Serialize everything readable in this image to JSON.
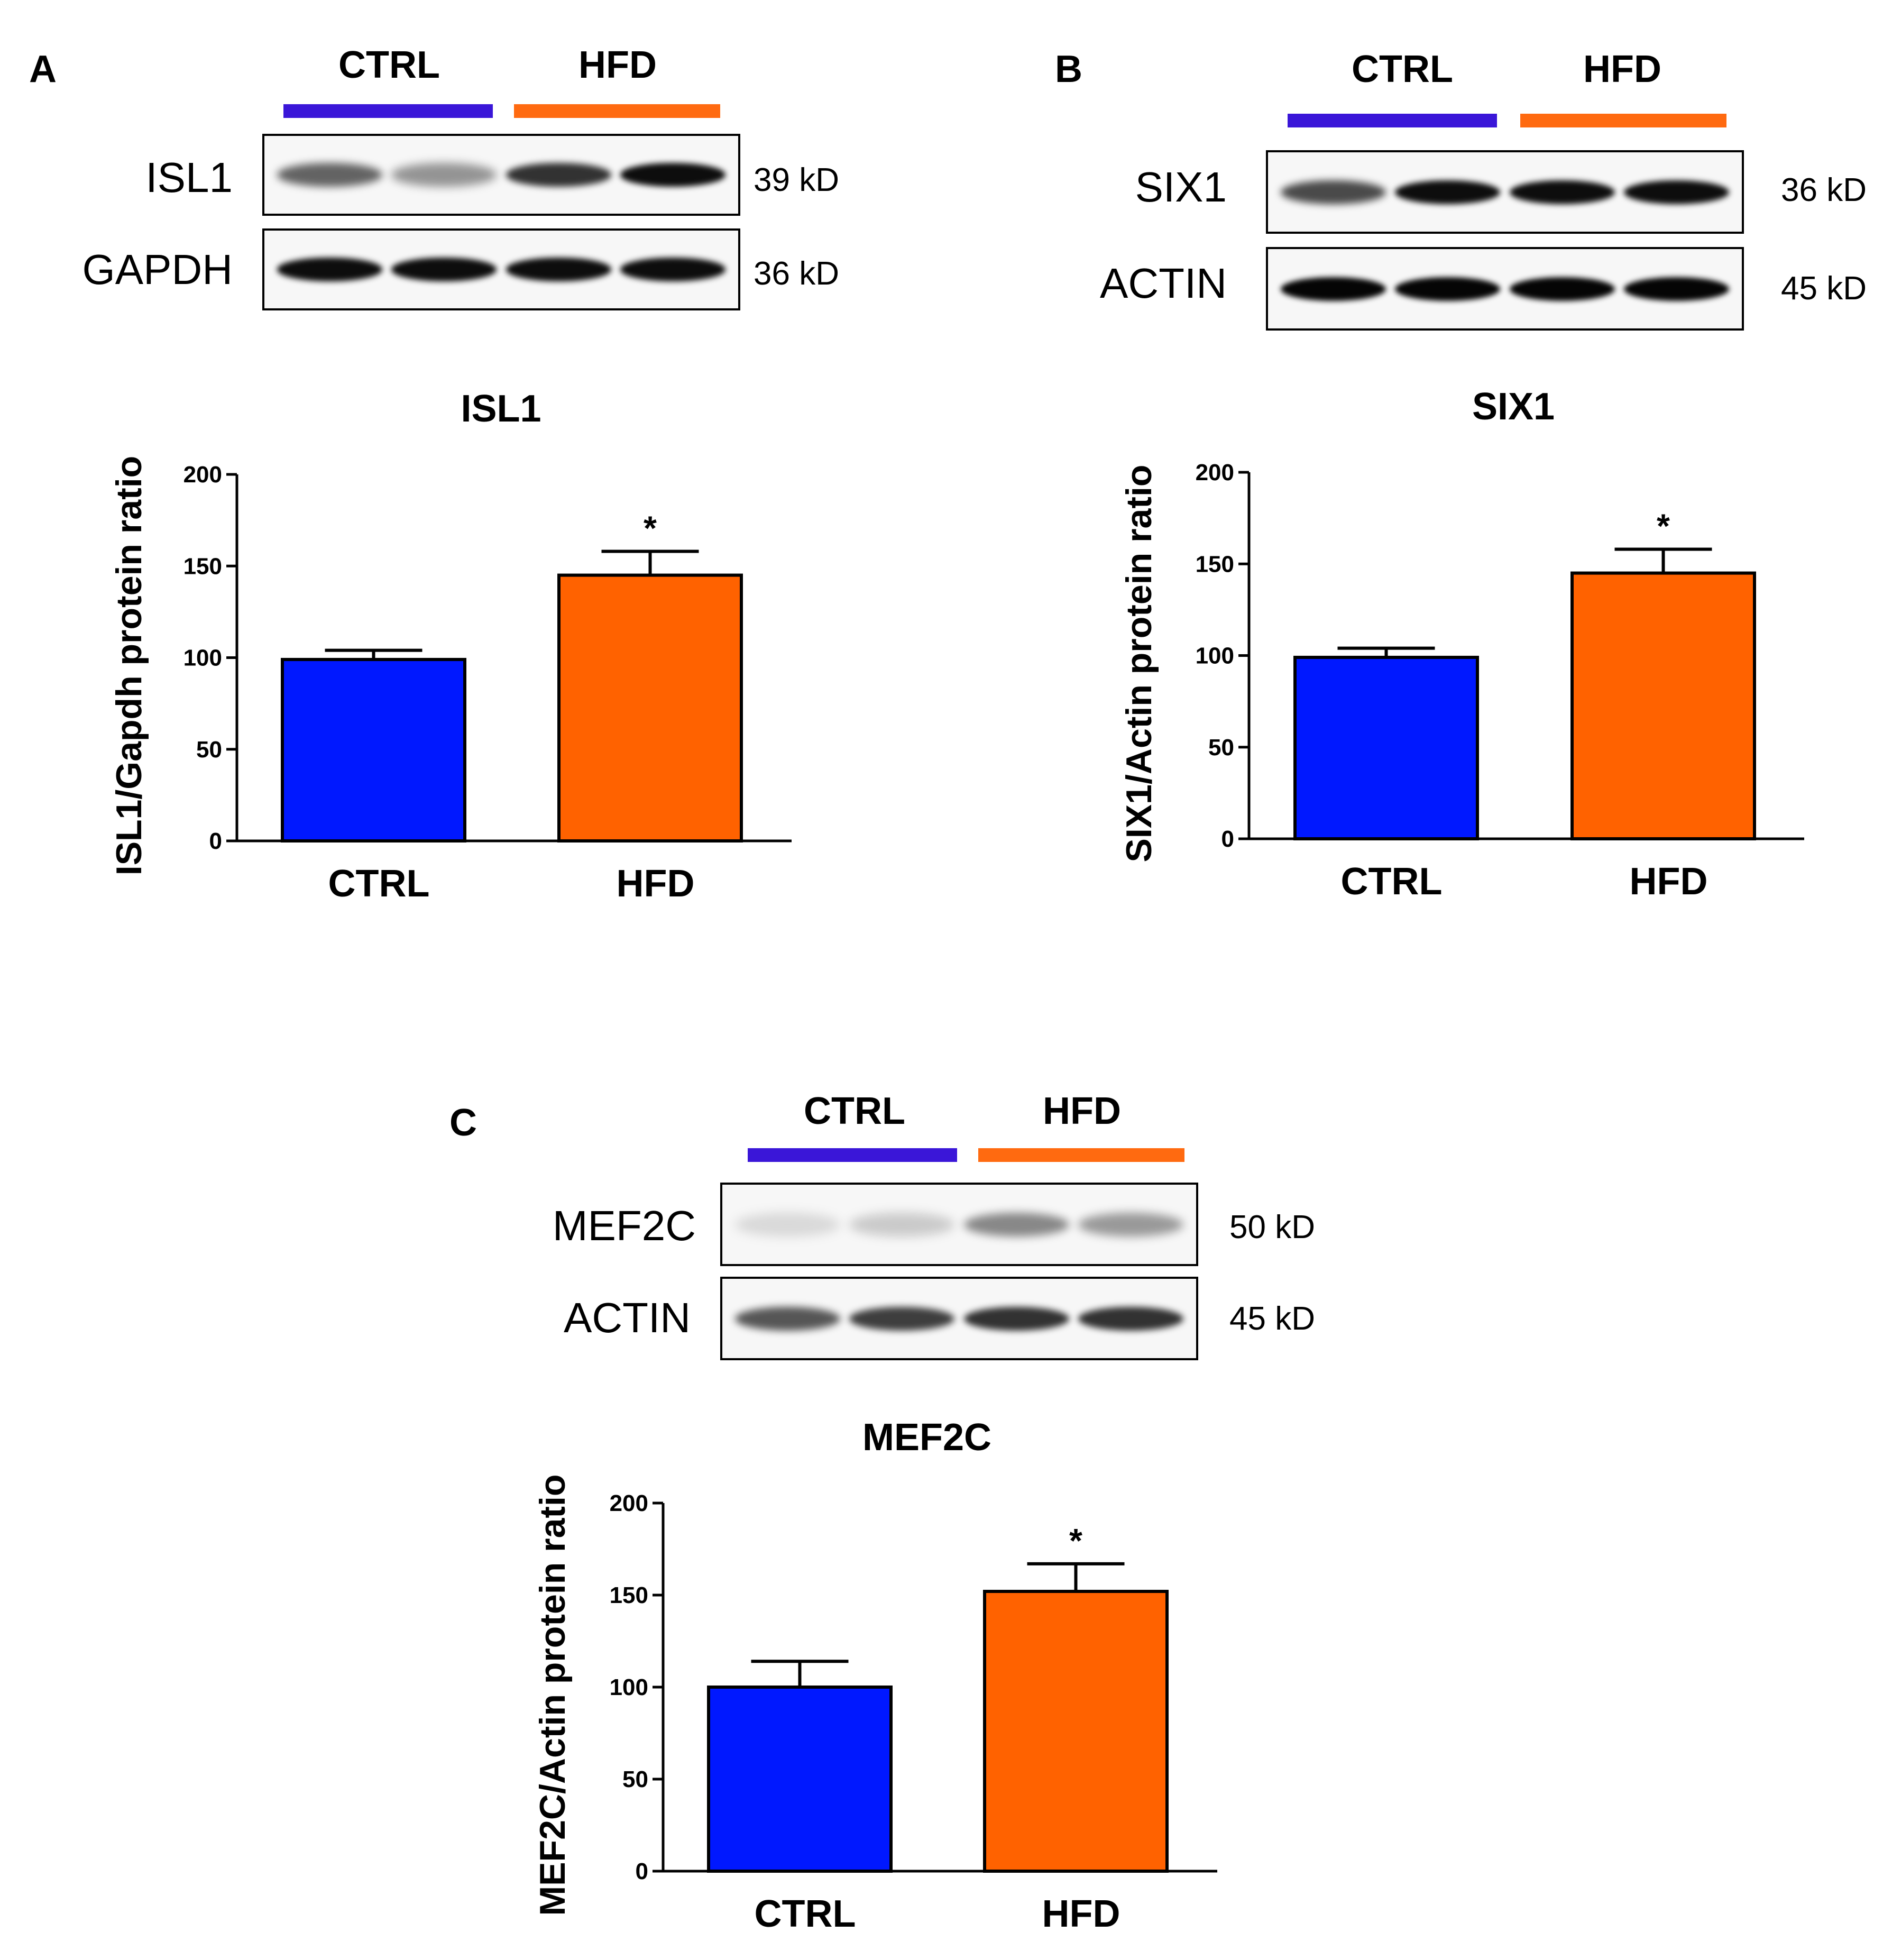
{
  "colors": {
    "ctrl_bar": "#0018ff",
    "hfd_bar": "#ff6200",
    "ctrl_group_line": "#3a16d8",
    "hfd_group_line": "#ff6a10"
  },
  "panels": [
    {
      "letter": "A",
      "groups": [
        "CTRL",
        "HFD"
      ],
      "blots": [
        {
          "protein": "ISL1",
          "kd": "39 kD",
          "intensities": [
            0.6,
            0.4,
            0.8,
            0.95
          ]
        },
        {
          "protein": "GAPDH",
          "kd": "36 kD",
          "intensities": [
            0.95,
            0.95,
            0.95,
            0.95
          ]
        }
      ]
    },
    {
      "letter": "B",
      "groups": [
        "CTRL",
        "HFD"
      ],
      "blots": [
        {
          "protein": "SIX1",
          "kd": "36 kD",
          "intensities": [
            0.7,
            0.95,
            0.95,
            0.95
          ]
        },
        {
          "protein": "ACTIN",
          "kd": "45 kD",
          "intensities": [
            0.98,
            0.98,
            0.98,
            0.98
          ]
        }
      ]
    },
    {
      "letter": "C",
      "groups": [
        "CTRL",
        "HFD"
      ],
      "blots": [
        {
          "protein": "MEF2C",
          "kd": "50 kD",
          "intensities": [
            0.12,
            0.18,
            0.45,
            0.38
          ]
        },
        {
          "protein": "ACTIN",
          "kd": "45 kD",
          "intensities": [
            0.65,
            0.75,
            0.8,
            0.8
          ]
        }
      ]
    }
  ],
  "chart_data": [
    {
      "type": "bar",
      "title": "ISL1",
      "ylabel": "ISL1/Gapdh protein ratio",
      "xlabel": "",
      "categories": [
        "CTRL",
        "HFD"
      ],
      "values": [
        99,
        145
      ],
      "errors": [
        5,
        13
      ],
      "significance": [
        "",
        "*"
      ],
      "ylim": [
        0,
        200
      ],
      "yticks": [
        0,
        50,
        100,
        150,
        200
      ],
      "grid": false
    },
    {
      "type": "bar",
      "title": "SIX1",
      "ylabel": "SIX1/Actin protein ratio",
      "xlabel": "",
      "categories": [
        "CTRL",
        "HFD"
      ],
      "values": [
        99,
        145
      ],
      "errors": [
        5,
        13
      ],
      "significance": [
        "",
        "*"
      ],
      "ylim": [
        0,
        200
      ],
      "yticks": [
        0,
        50,
        100,
        150,
        200
      ],
      "grid": false
    },
    {
      "type": "bar",
      "title": "MEF2C",
      "ylabel": "MEF2C/Actin protein ratio",
      "xlabel": "",
      "categories": [
        "CTRL",
        "HFD"
      ],
      "values": [
        100,
        152
      ],
      "errors": [
        14,
        15
      ],
      "significance": [
        "",
        "*"
      ],
      "ylim": [
        0,
        200
      ],
      "yticks": [
        0,
        50,
        100,
        150,
        200
      ],
      "grid": false
    }
  ]
}
